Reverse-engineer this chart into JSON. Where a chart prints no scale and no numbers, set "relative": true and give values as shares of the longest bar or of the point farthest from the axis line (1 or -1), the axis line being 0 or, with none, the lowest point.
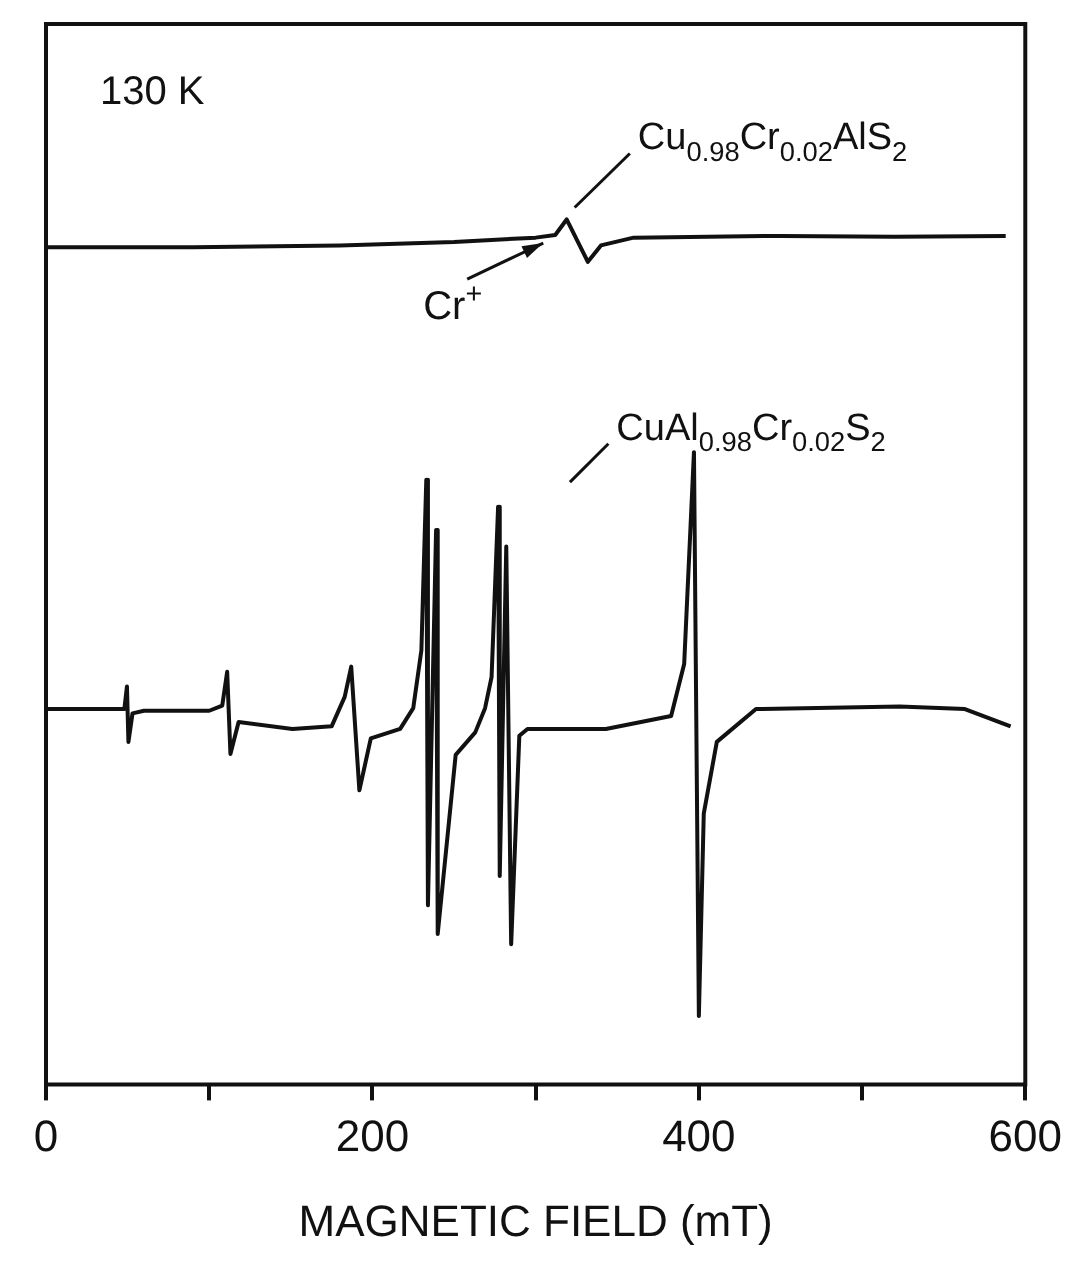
{
  "chart_data": {
    "type": "line",
    "relative": true,
    "xlabel": "MAGNETIC FIELD (mT)",
    "xlim": [
      0,
      600
    ],
    "xticks": [
      0,
      {
        "value": 100,
        "label": null
      },
      200,
      {
        "value": 300,
        "label": null
      },
      400,
      {
        "value": 500,
        "label": null
      },
      600
    ],
    "grid": false,
    "legend": false,
    "marker": "none",
    "annotations": [
      "130 K",
      {
        "text": "Cr$^{+}$",
        "x": 312,
        "y": 0.982
      }
    ],
    "series": [
      {
        "name": "Cu$_{0.98}$Cr$_{0.02}$AlS$_{2}$",
        "color": "#111111",
        "x": [
          0,
          90,
          180,
          250,
          300,
          312,
          319,
          332,
          340,
          360,
          450,
          520,
          588
        ],
        "values": [
          0.968,
          0.968,
          0.97,
          0.974,
          0.979,
          0.982,
          1.0,
          0.951,
          0.97,
          0.979,
          0.981,
          0.98,
          0.981
        ]
      },
      {
        "name": "CuAl$_{0.98}$Cr$_{0.02}$S$_{2}$",
        "color": "#111111",
        "x": [
          1,
          48,
          49.6,
          50.5,
          53,
          60,
          100,
          108,
          111,
          113,
          118,
          151,
          175,
          183,
          187,
          192,
          199,
          217,
          225,
          230,
          233,
          234,
          239,
          240,
          251,
          263,
          269,
          273,
          277,
          278,
          282,
          285,
          290,
          295,
          343,
          383,
          391,
          397,
          400,
          403,
          411,
          435,
          523,
          563,
          591
        ],
        "values": [
          0.434,
          0.434,
          0.46,
          0.396,
          0.429,
          0.432,
          0.432,
          0.438,
          0.477,
          0.382,
          0.419,
          0.411,
          0.414,
          0.448,
          0.483,
          0.34,
          0.4,
          0.411,
          0.435,
          0.502,
          0.699,
          0.207,
          0.641,
          0.174,
          0.381,
          0.407,
          0.435,
          0.471,
          0.668,
          0.241,
          0.622,
          0.162,
          0.403,
          0.411,
          0.411,
          0.426,
          0.486,
          0.731,
          0.079,
          0.313,
          0.396,
          0.434,
          0.437,
          0.434,
          0.414
        ]
      }
    ]
  }
}
